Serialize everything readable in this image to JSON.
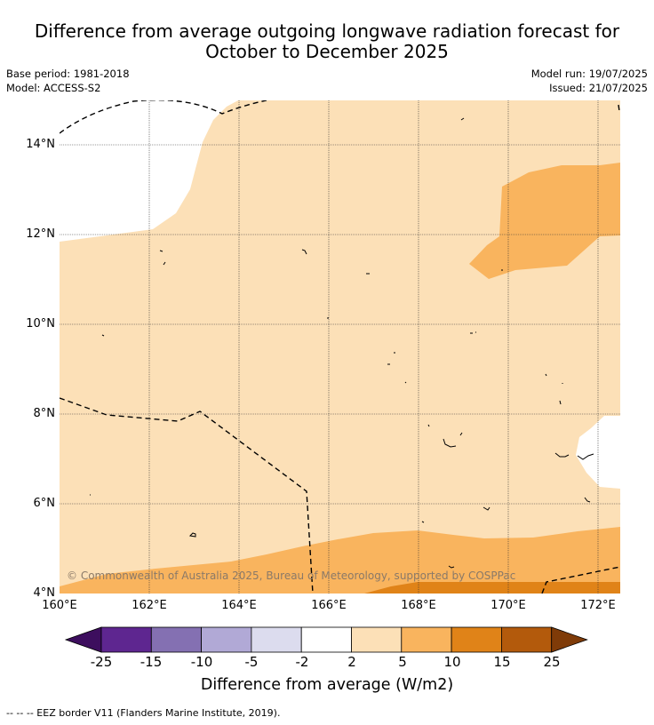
{
  "title_line1": "Difference from average outgoing longwave radiation forecast for",
  "title_line2": "October to December 2025",
  "base_period": "Base period: 1981-2018",
  "model": "Model: ACCESS-S2",
  "model_run": "Model run: 19/07/2025",
  "issued": "Issued: 21/07/2025",
  "y_ticks": [
    "14°N",
    "12°N",
    "10°N",
    "8°N",
    "6°N",
    "4°N"
  ],
  "x_ticks": [
    "160°E",
    "162°E",
    "164°E",
    "166°E",
    "168°E",
    "170°E",
    "172°E"
  ],
  "credit": "© Commonwealth of Australia 2025, Bureau of Meteorology, supported by COSPPac",
  "colorbar": {
    "labels": [
      "-25",
      "-15",
      "-10",
      "-5",
      "-2",
      "2",
      "5",
      "10",
      "15",
      "25"
    ],
    "colors": [
      "#3d0e5e",
      "#5e2690",
      "#8470b2",
      "#b1a9d6",
      "#dcdcee",
      "#ffffff",
      "#fce0b7",
      "#f9b45e",
      "#e08318",
      "#b35a0c",
      "#7f3b08"
    ],
    "title": "Difference from average (W/m2)"
  },
  "footer": "--  --  -- EEZ border V11 (Flanders Marine Institute, 2019)."
}
